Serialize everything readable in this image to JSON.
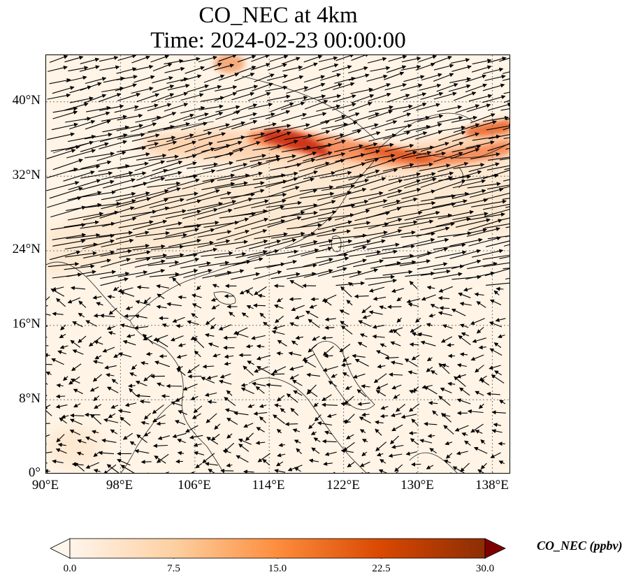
{
  "title": {
    "line1": "CO_NEC at 4km",
    "line2": "Time: 2024-02-23 00:00:00"
  },
  "map": {
    "lon_range": [
      90,
      140
    ],
    "lat_range": [
      0,
      45
    ],
    "lat_ticks": [
      "0°",
      "8°N",
      "16°N",
      "24°N",
      "32°N",
      "40°N"
    ],
    "lon_ticks": [
      "90°E",
      "98°E",
      "106°E",
      "114°E",
      "122°E",
      "130°E",
      "138°E"
    ],
    "gridlines": "dotted"
  },
  "colorbar": {
    "label": "CO_NEC (ppbv)",
    "ticks": [
      "0.0",
      "7.5",
      "15.0",
      "22.5",
      "30.0"
    ],
    "min": 0,
    "max": 30,
    "colors": [
      "#fff5eb",
      "#fdd0a2",
      "#fd8d3c",
      "#d94801",
      "#8c2d04",
      "#7f0000"
    ],
    "extend": "both"
  }
}
